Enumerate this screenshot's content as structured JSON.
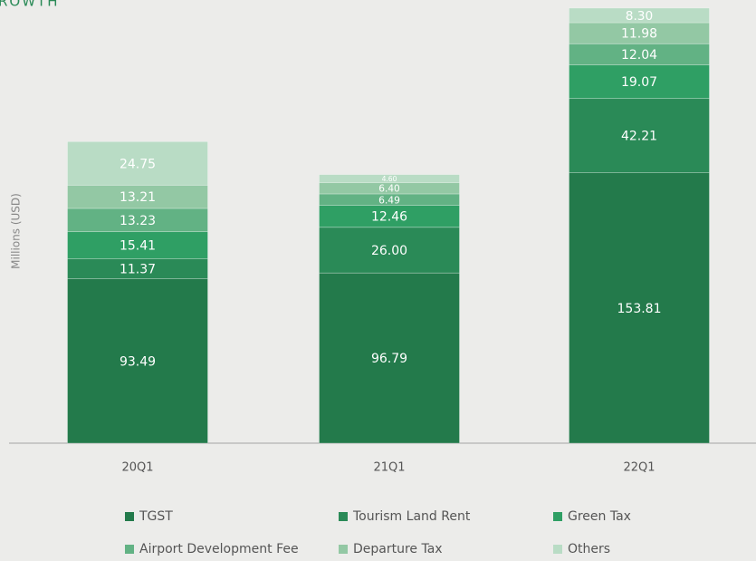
{
  "chart_data": {
    "type": "stacked_bar",
    "title": "ROWTH",
    "y_label": "Millions (USD)",
    "categories": [
      "20Q1",
      "21Q1",
      "22Q1"
    ],
    "series": [
      {
        "name": "TGST",
        "color": "#237a4b",
        "values": [
          93.49,
          96.79,
          153.81
        ]
      },
      {
        "name": "Tourism Land Rent",
        "color": "#2a8a57",
        "values": [
          11.37,
          26.0,
          42.21
        ]
      },
      {
        "name": "Green Tax",
        "color": "#2f9f64",
        "values": [
          15.41,
          12.46,
          19.07
        ]
      },
      {
        "name": "Airport Development Fee",
        "color": "#62b284",
        "values": [
          13.23,
          6.49,
          12.04
        ]
      },
      {
        "name": "Departure Tax",
        "color": "#93c8a4",
        "values": [
          13.21,
          6.4,
          11.98
        ]
      },
      {
        "name": "Others",
        "color": "#b9dcc5",
        "values": [
          24.75,
          4.6,
          8.3
        ]
      }
    ],
    "value_labels": [
      [
        "93.49",
        "96.79",
        "153.81"
      ],
      [
        "11.37",
        "26.00",
        "42.21"
      ],
      [
        "15.41",
        "12.46",
        "19.07"
      ],
      [
        "13.23",
        "6.49",
        "12.04"
      ],
      [
        "13.21",
        "6.40",
        "11.98"
      ],
      [
        "24.75",
        "4.60",
        "8.30"
      ]
    ],
    "ylim": [
      0,
      252
    ]
  }
}
